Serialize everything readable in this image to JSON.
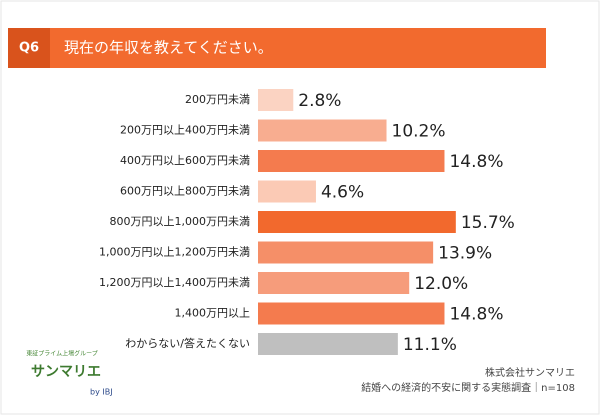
{
  "header": {
    "number": "Q6"
  },
  "chart_data": {
    "type": "bar",
    "orientation": "horizontal",
    "title": "現在の年収を教えてください。",
    "categories": [
      "200万円未満",
      "200万円以上400万円未満",
      "400万円以上600万円未満",
      "600万円以上800万円未満",
      "800万円以上1,000万円未満",
      "1,000万円以上1,200万円未満",
      "1,200万円以上1,400万円未満",
      "1,400万円以上",
      "わからない/答えたくない"
    ],
    "values": [
      2.8,
      10.2,
      14.8,
      4.6,
      15.7,
      13.9,
      12.0,
      14.8,
      11.1
    ],
    "value_labels": [
      "2.8%",
      "10.2%",
      "14.8%",
      "4.6%",
      "15.7%",
      "13.9%",
      "12.0%",
      "14.8%",
      "11.1%"
    ],
    "colors": [
      "#fbd3c2",
      "#f8ad90",
      "#f47b4e",
      "#fbcab5",
      "#f2692d",
      "#f58f68",
      "#f69c7b",
      "#f47b4e",
      "#bfbfbf"
    ]
  },
  "logo": {
    "tagline": "東証プライム上場グループ",
    "name": "サンマリエ",
    "by": "by IBJ"
  },
  "source": {
    "company": "株式会社サンマリエ",
    "survey": "結婚への経済的不安に関する実態調査｜n=108"
  }
}
